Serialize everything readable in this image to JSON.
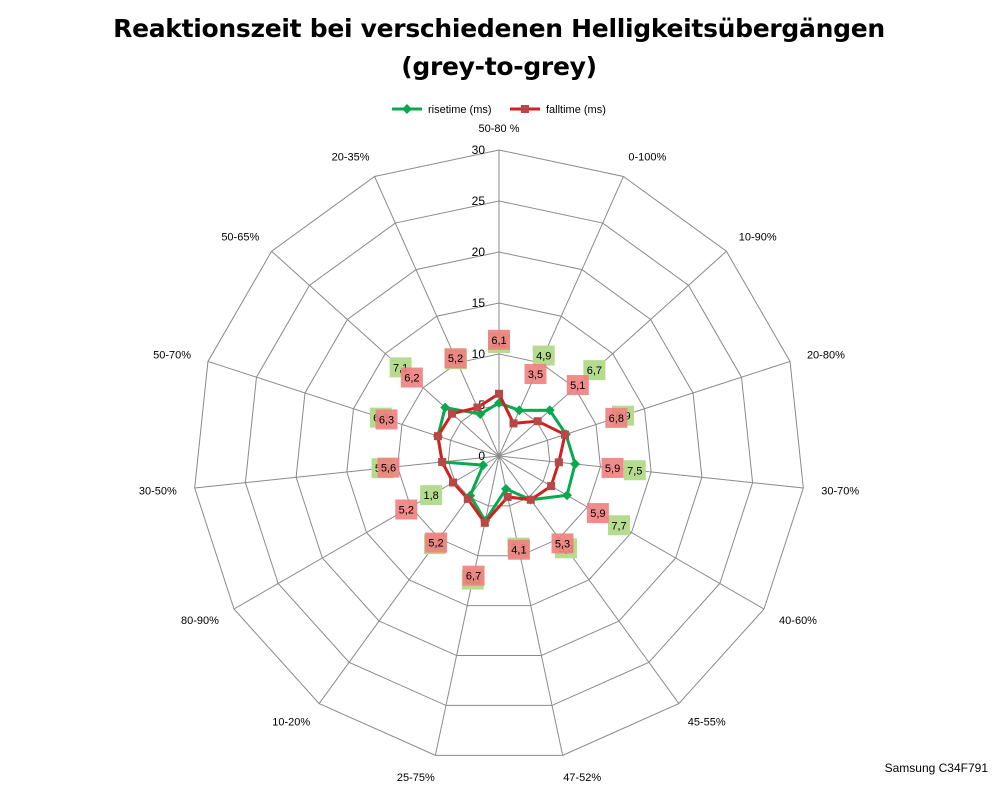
{
  "chart_data": {
    "type": "radar",
    "title_lines": [
      "Reaktionszeit bei verschiedenen Helligkeitsübergängen",
      "(grey-to-grey)"
    ],
    "categories": [
      "50-80 %",
      "0-100%",
      "10-90%",
      "20-80%",
      "30-70%",
      "40-60%",
      "45-55%",
      "47-52%",
      "25-75%",
      "10-20%",
      "80-90%",
      "30-50%",
      "50-70%",
      "50-65%",
      "20-35%"
    ],
    "series": [
      {
        "name": "risetime (ms)",
        "values": [
          5.2,
          4.9,
          6.7,
          6.9,
          7.5,
          7.7,
          5.3,
          3.3,
          6.5,
          4.8,
          1.8,
          5.6,
          6.3,
          7.1,
          4.5
        ],
        "color": "#0aa84f",
        "label_bg": "#b5dc8e"
      },
      {
        "name": "falltime (ms)",
        "values": [
          6.1,
          3.5,
          5.1,
          6.8,
          5.9,
          5.9,
          5.3,
          4.1,
          6.7,
          5.2,
          5.2,
          5.6,
          6.3,
          6.2,
          5.2
        ],
        "color": "#d02020",
        "label_bg": "#f08080"
      }
    ],
    "r_ticks": [
      0,
      5,
      10,
      15,
      20,
      25,
      30
    ],
    "r_range": [
      0,
      30
    ],
    "legend_position": "top",
    "grid": true
  },
  "footer_note": "Samsung C34F791"
}
